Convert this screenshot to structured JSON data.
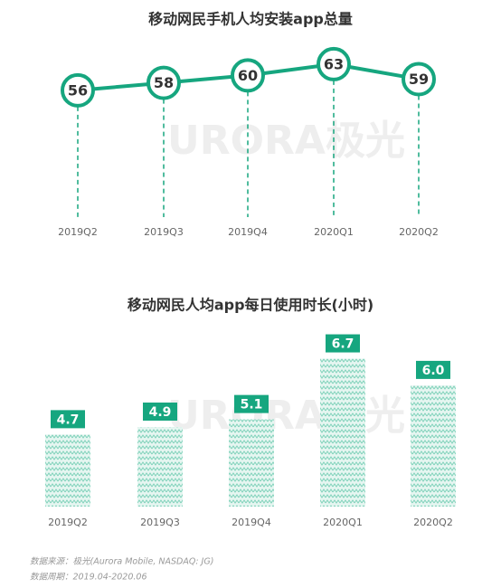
{
  "chart_data": [
    {
      "type": "line",
      "title": "移动网民手机人均安装app总量",
      "categories": [
        "2019Q2",
        "2019Q3",
        "2019Q4",
        "2020Q1",
        "2020Q2"
      ],
      "values": [
        56,
        58,
        60,
        63,
        59
      ],
      "color": "#16a67f",
      "ylim": [
        40,
        70
      ]
    },
    {
      "type": "bar",
      "title": "移动网民人均app每日使用时长(小时)",
      "categories": [
        "2019Q2",
        "2019Q3",
        "2019Q4",
        "2020Q1",
        "2020Q2"
      ],
      "values": [
        4.7,
        4.9,
        5.1,
        6.7,
        6.0
      ],
      "value_labels": [
        "4.7",
        "4.9",
        "5.1",
        "6.7",
        "6.0"
      ],
      "color": "#16a67f",
      "ylim": [
        2.8,
        7
      ]
    }
  ],
  "watermark": "URORA极光",
  "footer": {
    "source": "数据来源：极光(Aurora Mobile, NASDAQ: JG)",
    "period": "数据周期：2019.04-2020.06"
  }
}
